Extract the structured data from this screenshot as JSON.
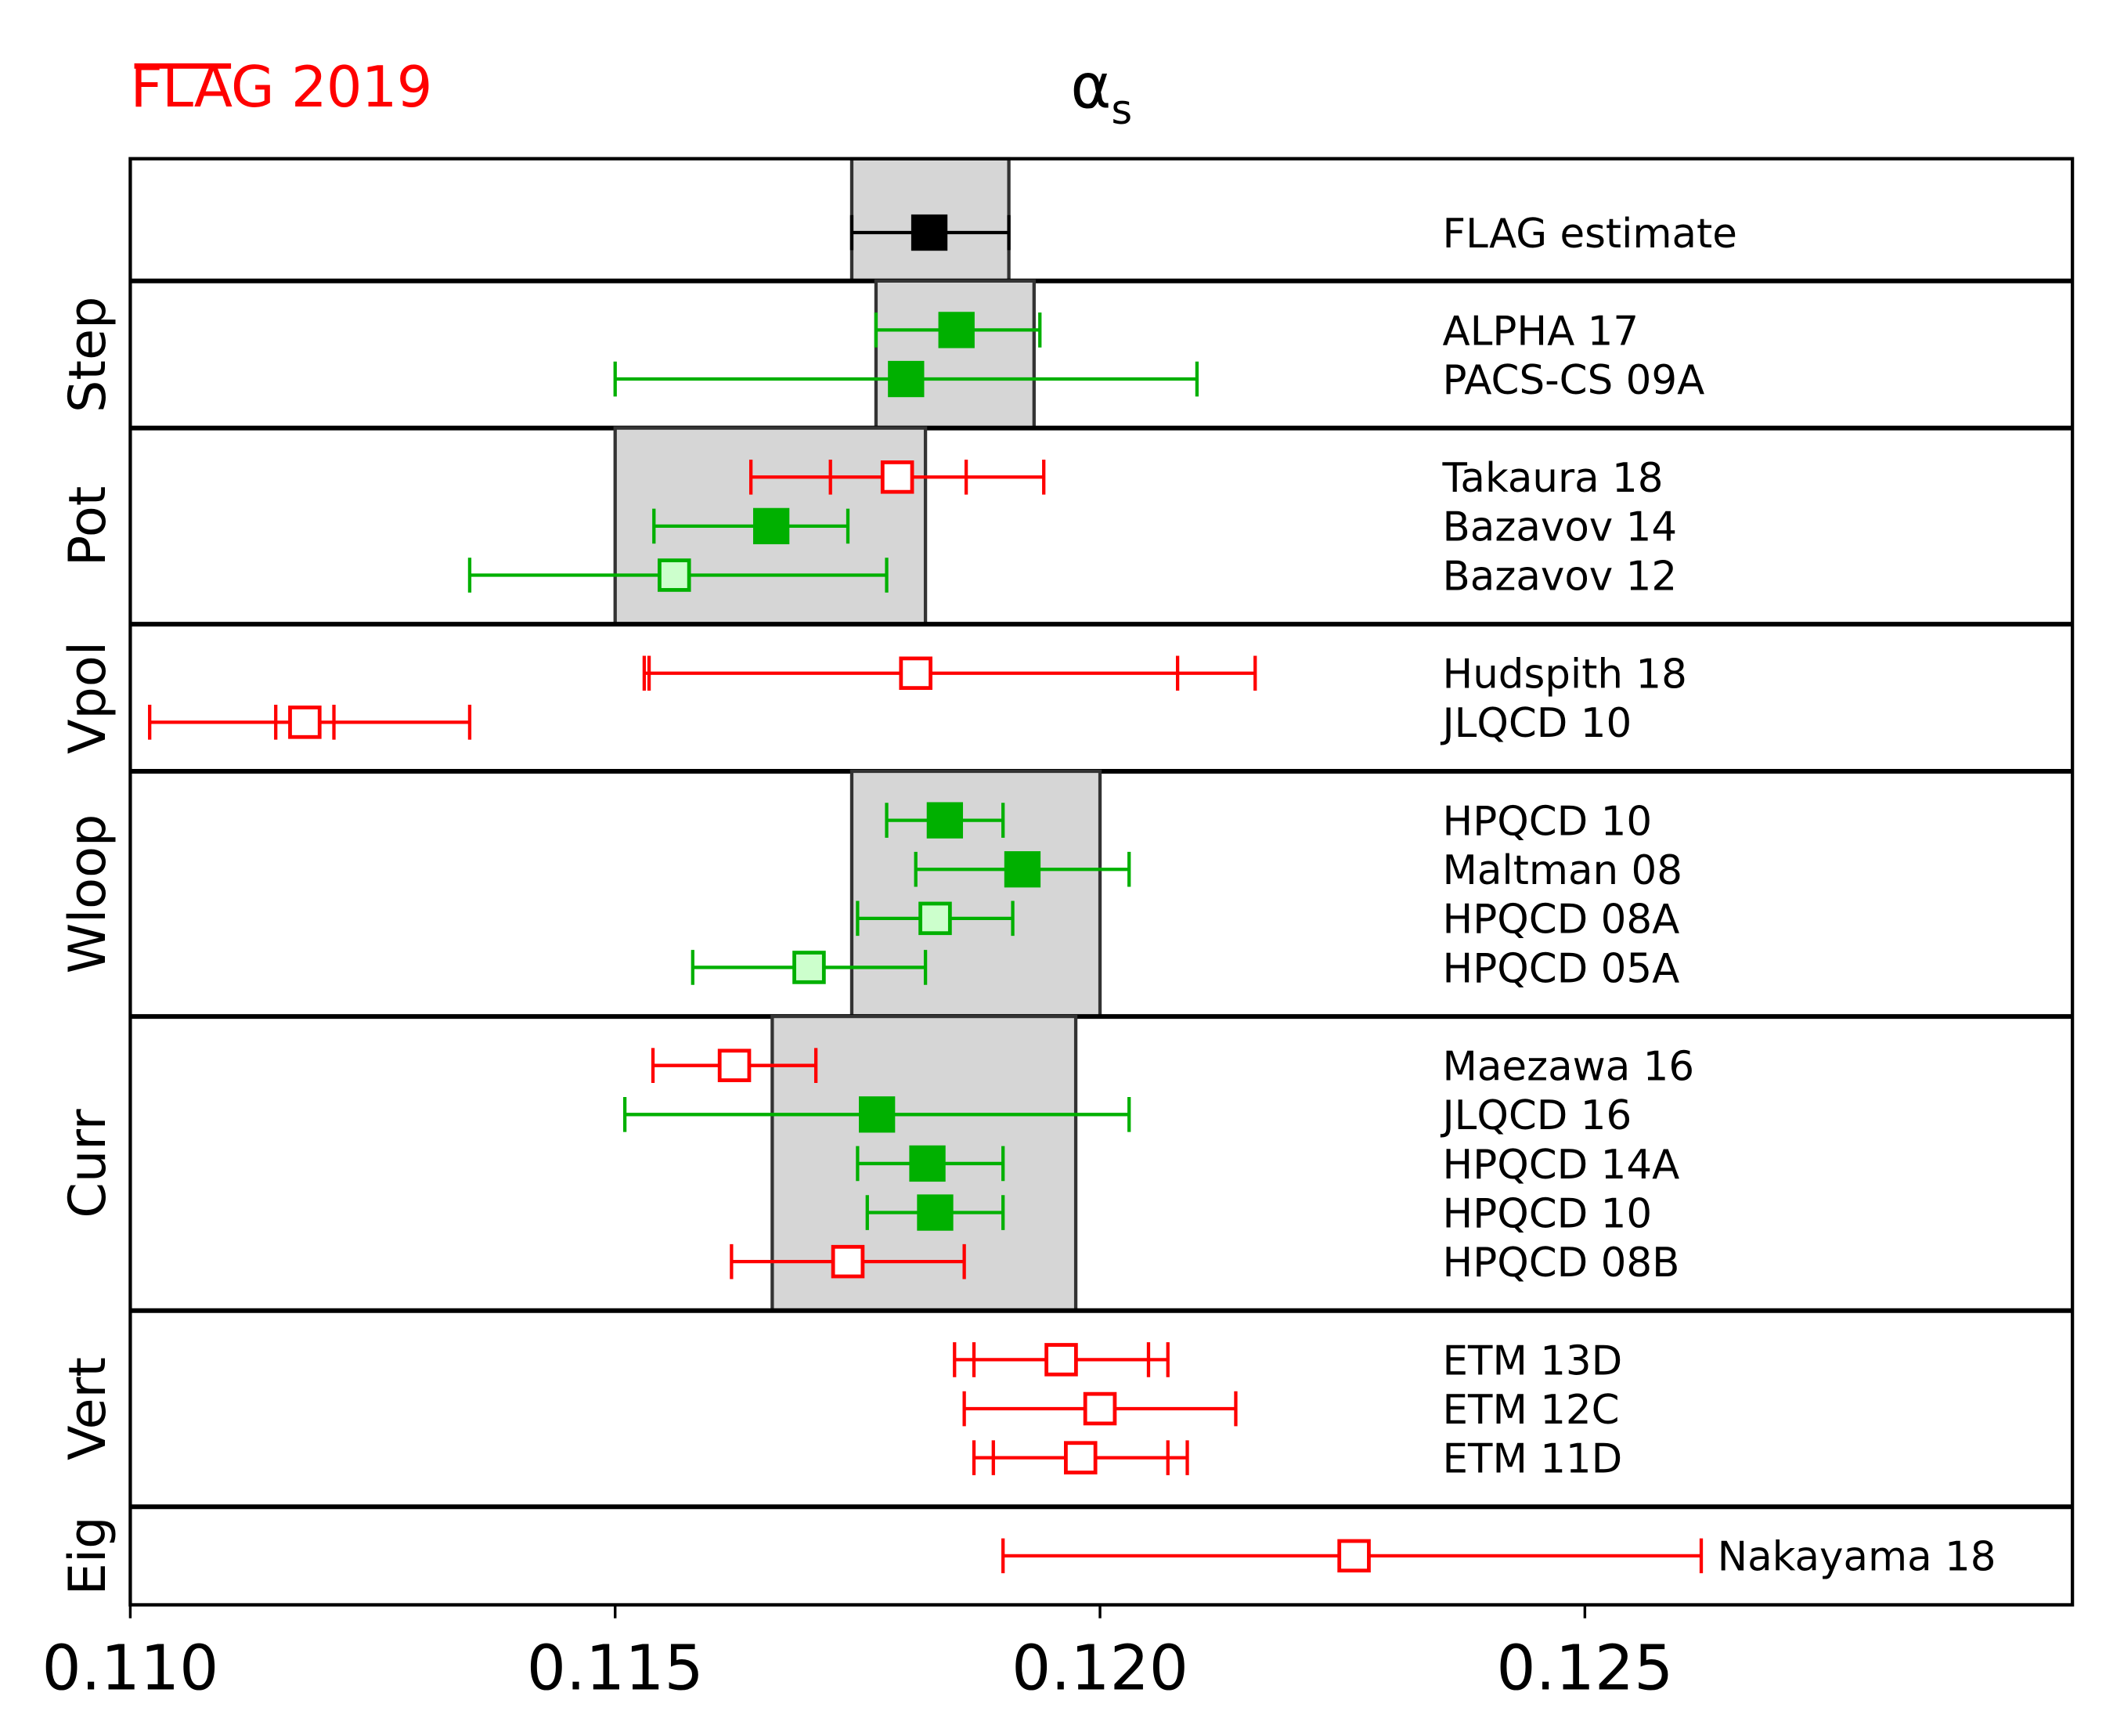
{
  "chart_data": {
    "type": "scatter",
    "subtype": "horizontal error-bar plot",
    "title": "α_s",
    "logo": "FLAG 2019",
    "xlabel": "",
    "xlim": [
      0.11,
      0.13
    ],
    "xticks": [
      "0.110",
      "0.115",
      "0.120",
      "0.125"
    ],
    "colors": {
      "green": "#00b000",
      "light_green": "#ccffcc",
      "red": "#ff0000",
      "black": "#000000",
      "band": "#d6d6d6"
    },
    "panels": [
      {
        "label": "",
        "band": [
          0.11744,
          0.11906
        ],
        "entries": [
          {
            "name": "FLAG estimate",
            "value": 0.11824,
            "err": [
              0.11744,
              0.11906
            ],
            "style": "black"
          }
        ]
      },
      {
        "label": "Step",
        "band": [
          0.11769,
          0.11932
        ],
        "entries": [
          {
            "name": "ALPHA 17",
            "value": 0.11852,
            "err": [
              0.11769,
              0.11938
            ],
            "style": "green-filled"
          },
          {
            "name": "PACS-CS 09A",
            "value": 0.118,
            "err": [
              0.115,
              0.121
            ],
            "style": "green-filled"
          }
        ]
      },
      {
        "label": "Pot",
        "band": [
          0.115,
          0.1182
        ],
        "entries": [
          {
            "name": "Takaura 18",
            "value": 0.11791,
            "err": [
              0.1164,
              0.11942
            ],
            "stat": [
              0.11722,
              0.11862
            ],
            "style": "red-open"
          },
          {
            "name": "Bazavov 14",
            "value": 0.11661,
            "err": [
              0.1154,
              0.1174
            ],
            "style": "green-filled"
          },
          {
            "name": "Bazavov 12",
            "value": 0.11561,
            "err": [
              0.1135,
              0.1178
            ],
            "style": "green-light"
          }
        ]
      },
      {
        "label": "Vpol",
        "band": null,
        "entries": [
          {
            "name": "Hudspith 18",
            "value": 0.1181,
            "err": [
              0.1153,
              0.1216
            ],
            "stat": [
              0.11535,
              0.1208
            ],
            "style": "red-open"
          },
          {
            "name": "JLQCD 10",
            "value": 0.1118,
            "err": [
              0.1102,
              0.1135
            ],
            "stat": [
              0.1115,
              0.1121
            ],
            "style": "red-open"
          }
        ]
      },
      {
        "label": "Wloop",
        "band": [
          0.11744,
          0.12
        ],
        "entries": [
          {
            "name": "HPQCD 10",
            "value": 0.1184,
            "err": [
              0.1178,
              0.119
            ],
            "style": "green-filled"
          },
          {
            "name": "Maltman 08",
            "value": 0.1192,
            "err": [
              0.1181,
              0.1203
            ],
            "style": "green-filled"
          },
          {
            "name": "HPQCD 08A",
            "value": 0.1183,
            "err": [
              0.1175,
              0.1191
            ],
            "style": "green-light"
          },
          {
            "name": "HPQCD 05A",
            "value": 0.117,
            "err": [
              0.1158,
              0.1182
            ],
            "style": "green-light"
          }
        ]
      },
      {
        "label": "Curr",
        "band": [
          0.11662,
          0.11975
        ],
        "entries": [
          {
            "name": "Maezawa 16",
            "value": 0.11623,
            "err": [
              0.11539,
              0.11707
            ],
            "style": "red-open"
          },
          {
            "name": "JLQCD 16",
            "value": 0.1177,
            "err": [
              0.1151,
              0.1203
            ],
            "style": "green-filled"
          },
          {
            "name": "HPQCD 14A",
            "value": 0.11822,
            "err": [
              0.1175,
              0.119
            ],
            "style": "green-filled"
          },
          {
            "name": "HPQCD 10",
            "value": 0.1183,
            "err": [
              0.1176,
              0.119
            ],
            "style": "green-filled"
          },
          {
            "name": "HPQCD 08B",
            "value": 0.1174,
            "err": [
              0.1162,
              0.1186
            ],
            "style": "red-open"
          }
        ]
      },
      {
        "label": "Vert",
        "band": null,
        "entries": [
          {
            "name": "ETM 13D",
            "value": 0.1196,
            "err": [
              0.1185,
              0.1207
            ],
            "stat": [
              0.1187,
              0.1205
            ],
            "style": "red-open"
          },
          {
            "name": "ETM 12C",
            "value": 0.12,
            "err": [
              0.1186,
              0.1214
            ],
            "style": "red-open"
          },
          {
            "name": "ETM 11D",
            "value": 0.1198,
            "err": [
              0.1187,
              0.1209
            ],
            "stat": [
              0.1189,
              0.1207
            ],
            "style": "red-open"
          }
        ]
      },
      {
        "label": "Eig",
        "band": null,
        "entries": [
          {
            "name": "Nakayama 18",
            "value": 0.12262,
            "err": [
              0.119,
              0.1262
            ],
            "style": "red-open",
            "label_after_bar": true
          }
        ]
      }
    ]
  }
}
